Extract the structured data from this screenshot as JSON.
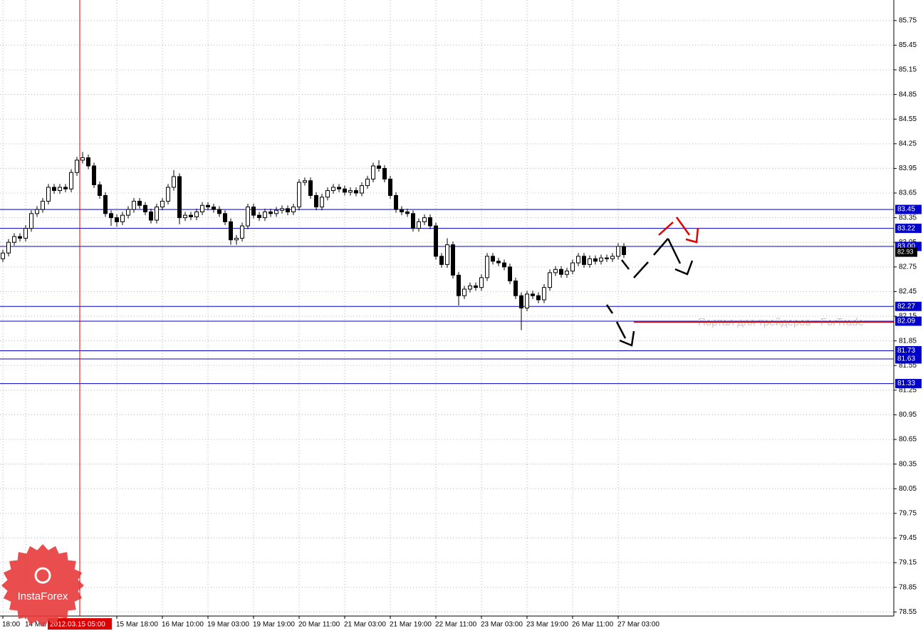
{
  "chart_data": {
    "type": "candlestick",
    "open": [
      82.85,
      82.92,
      83.05,
      83.12,
      83.1,
      83.22,
      83.4,
      83.45,
      83.55,
      83.72,
      83.68,
      83.72,
      83.7,
      83.9,
      84.05,
      84.08,
      83.98,
      83.75,
      83.62,
      83.4,
      83.35,
      83.3,
      83.38,
      83.45,
      83.55,
      83.5,
      83.42,
      83.32,
      83.48,
      83.55,
      83.72,
      83.85,
      83.35,
      83.38,
      83.36,
      83.42,
      83.5,
      83.48,
      83.45,
      83.4,
      83.3,
      83.08,
      83.1,
      83.25,
      83.48,
      83.38,
      83.35,
      83.42,
      83.4,
      83.44,
      83.46,
      83.42,
      83.48,
      83.78,
      83.8,
      83.62,
      83.48,
      83.6,
      83.68,
      83.72,
      83.7,
      83.66,
      83.68,
      83.65,
      83.74,
      83.82,
      83.98,
      83.95,
      83.82,
      83.62,
      83.45,
      83.42,
      83.4,
      83.22,
      83.3,
      83.35,
      83.25,
      82.88,
      82.78,
      83.02,
      82.65,
      82.4,
      82.48,
      82.52,
      82.5,
      82.62,
      82.88,
      82.82,
      82.8,
      82.75,
      82.58,
      82.4,
      82.25,
      82.42,
      82.4,
      82.35,
      82.5,
      82.68,
      82.72,
      82.66,
      82.7,
      82.8,
      82.88,
      82.78,
      82.85,
      82.82,
      82.86,
      82.85,
      82.88,
      83.0
    ],
    "high": [
      82.96,
      83.09,
      83.16,
      83.16,
      83.26,
      83.44,
      83.49,
      83.59,
      83.76,
      83.76,
      83.76,
      83.76,
      83.94,
      84.09,
      84.15,
      84.12,
      84.02,
      83.79,
      83.66,
      83.44,
      83.39,
      83.42,
      83.49,
      83.59,
      83.59,
      83.54,
      83.46,
      83.52,
      83.59,
      83.76,
      83.93,
      83.89,
      83.42,
      83.42,
      83.46,
      83.54,
      83.54,
      83.52,
      83.49,
      83.44,
      83.34,
      83.14,
      83.29,
      83.52,
      83.52,
      83.42,
      83.46,
      83.46,
      83.48,
      83.5,
      83.5,
      83.52,
      83.82,
      83.84,
      83.84,
      83.66,
      83.64,
      83.72,
      83.76,
      83.76,
      83.74,
      83.72,
      83.72,
      83.78,
      83.86,
      84.02,
      84.05,
      83.99,
      83.86,
      83.66,
      83.49,
      83.46,
      83.44,
      83.34,
      83.39,
      83.39,
      83.29,
      82.92,
      83.1,
      83.06,
      82.69,
      82.52,
      82.56,
      82.56,
      82.66,
      82.92,
      82.92,
      82.86,
      82.84,
      82.79,
      82.62,
      82.44,
      82.46,
      82.46,
      82.44,
      82.54,
      82.72,
      82.76,
      82.76,
      82.74,
      82.84,
      82.92,
      82.92,
      82.89,
      82.89,
      82.9,
      82.9,
      82.92,
      83.04,
      83.04
    ],
    "low": [
      82.81,
      82.88,
      83.01,
      83.06,
      83.06,
      83.18,
      83.36,
      83.41,
      83.51,
      83.64,
      83.64,
      83.66,
      83.66,
      83.86,
      84.01,
      83.94,
      83.71,
      83.58,
      83.36,
      83.25,
      83.24,
      83.26,
      83.34,
      83.41,
      83.46,
      83.38,
      83.28,
      83.28,
      83.44,
      83.51,
      83.68,
      83.27,
      83.31,
      83.32,
      83.32,
      83.38,
      83.44,
      83.41,
      83.36,
      83.26,
      83.02,
      83.02,
      83.06,
      83.21,
      83.34,
      83.31,
      83.31,
      83.36,
      83.36,
      83.4,
      83.38,
      83.38,
      83.44,
      83.74,
      83.58,
      83.44,
      83.44,
      83.56,
      83.64,
      83.66,
      83.62,
      83.62,
      83.61,
      83.61,
      83.7,
      83.78,
      83.91,
      83.78,
      83.58,
      83.41,
      83.38,
      83.36,
      83.18,
      83.18,
      83.26,
      83.21,
      82.84,
      82.74,
      82.74,
      82.61,
      82.28,
      82.36,
      82.44,
      82.46,
      82.46,
      82.58,
      82.78,
      82.76,
      82.71,
      82.54,
      82.36,
      81.98,
      82.21,
      82.36,
      82.31,
      82.31,
      82.46,
      82.64,
      82.62,
      82.62,
      82.66,
      82.76,
      82.74,
      82.74,
      82.78,
      82.78,
      82.81,
      82.81,
      82.84,
      82.86
    ],
    "close": [
      82.92,
      83.05,
      83.12,
      83.1,
      83.22,
      83.4,
      83.45,
      83.55,
      83.72,
      83.68,
      83.72,
      83.7,
      83.9,
      84.05,
      84.08,
      83.98,
      83.75,
      83.62,
      83.4,
      83.35,
      83.3,
      83.38,
      83.45,
      83.55,
      83.5,
      83.42,
      83.32,
      83.48,
      83.55,
      83.72,
      83.85,
      83.35,
      83.38,
      83.36,
      83.42,
      83.5,
      83.48,
      83.45,
      83.4,
      83.3,
      83.08,
      83.1,
      83.25,
      83.48,
      83.38,
      83.35,
      83.42,
      83.4,
      83.44,
      83.46,
      83.42,
      83.48,
      83.78,
      83.8,
      83.62,
      83.48,
      83.6,
      83.68,
      83.72,
      83.7,
      83.66,
      83.68,
      83.65,
      83.74,
      83.82,
      83.98,
      83.95,
      83.82,
      83.62,
      83.45,
      83.42,
      83.4,
      83.22,
      83.3,
      83.35,
      83.25,
      82.88,
      82.78,
      83.02,
      82.65,
      82.4,
      82.48,
      82.52,
      82.5,
      82.62,
      82.88,
      82.82,
      82.8,
      82.75,
      82.58,
      82.4,
      82.25,
      82.42,
      82.4,
      82.35,
      82.5,
      82.68,
      82.72,
      82.66,
      82.7,
      82.8,
      82.88,
      82.78,
      82.85,
      82.82,
      82.86,
      82.85,
      82.88,
      83.0,
      82.9
    ],
    "xticks": [
      {
        "value": 0,
        "label": "18:00"
      },
      {
        "value": 4,
        "label": "14 Mar"
      },
      {
        "value": 20,
        "label": "15 Mar 18:00"
      },
      {
        "value": 28,
        "label": "16 Mar 10:00"
      },
      {
        "value": 36,
        "label": "19 Mar 03:00"
      },
      {
        "value": 44,
        "label": "19 Mar 19:00"
      },
      {
        "value": 52,
        "label": "20 Mar 11:00"
      },
      {
        "value": 60,
        "label": "21 Mar 03:00"
      },
      {
        "value": 68,
        "label": "21 Mar 19:00"
      },
      {
        "value": 76,
        "label": "22 Mar 11:00"
      },
      {
        "value": 84,
        "label": "23 Mar 03:00"
      },
      {
        "value": 92,
        "label": "23 Mar 19:00"
      },
      {
        "value": 100,
        "label": "26 Mar 11:00"
      },
      {
        "value": 108,
        "label": "27 Mar 03:00"
      }
    ],
    "ylim": [
      78.5,
      86.0
    ],
    "yticks": [
      85.75,
      85.45,
      85.15,
      84.85,
      84.55,
      84.25,
      83.95,
      83.65,
      83.35,
      83.05,
      82.75,
      82.45,
      82.15,
      81.85,
      81.55,
      81.25,
      80.95,
      80.65,
      80.35,
      80.05,
      79.75,
      79.45,
      79.15,
      78.85,
      78.55
    ],
    "grid": true,
    "levels": [
      83.45,
      83.22,
      {
        "value": 83,
        "label": "83.00"
      },
      82.27,
      82.09,
      81.73,
      81.63,
      81.33
    ],
    "level_color": "#0000cc",
    "current_price": 82.93,
    "crosshair_label": "2012.03.15 05:00"
  },
  "watermark": "Портал для трейдеров - ForTrade",
  "logo": "InstaForex"
}
